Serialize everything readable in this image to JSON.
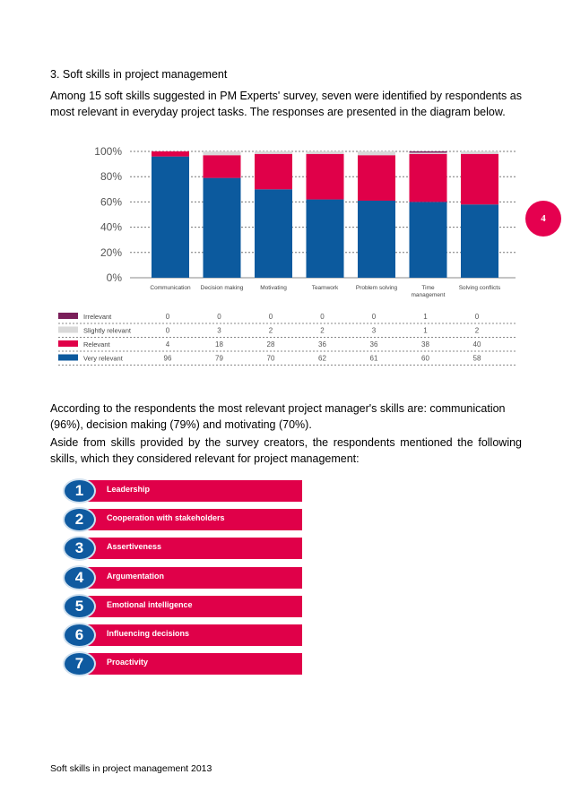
{
  "heading": "3. Soft skills in project management",
  "intro": "Among 15 soft skills suggested in PM Experts' survey, seven were identified by respondents as most relevant in everyday project tasks. The responses are presented in the diagram below.",
  "page_number": "4",
  "paragraph2": "According to the respondents the most relevant project manager's skills are: communication (96%), decision making  (79%) and motivating (70%).",
  "paragraph3": "Aside from skills provided by the survey creators, the respondents mentioned the following skills, which they considered relevant for project management:",
  "skills": [
    {
      "num": "1",
      "label": "Leadership"
    },
    {
      "num": "2",
      "label": "Cooperation with stakeholders"
    },
    {
      "num": "3",
      "label": "Assertiveness"
    },
    {
      "num": "4",
      "label": "Argumentation"
    },
    {
      "num": "5",
      "label": "Emotional intelligence"
    },
    {
      "num": "6",
      "label": "Influencing decisions"
    },
    {
      "num": "7",
      "label": "Proactivity"
    }
  ],
  "footer": "Soft skills in project management 2013",
  "colors": {
    "very_relevant": "#0c5a9e",
    "relevant": "#e00049",
    "slightly_relevant": "#d9d9d9",
    "irrelevant": "#7a1f5a",
    "badge": "#e5004f"
  },
  "chart_data": {
    "type": "bar",
    "stacked": true,
    "categories": [
      "Communication",
      "Decision making",
      "Motivating",
      "Teamwork",
      "Problem solving",
      "Time\nmanagement",
      "Solving conflicts"
    ],
    "series": [
      {
        "name": "Very relevant",
        "values": [
          96,
          79,
          70,
          62,
          61,
          60,
          58
        ]
      },
      {
        "name": "Relevant",
        "values": [
          4,
          18,
          28,
          36,
          36,
          38,
          40
        ]
      },
      {
        "name": "Slightly relevant",
        "values": [
          0,
          3,
          2,
          2,
          3,
          1,
          2
        ]
      },
      {
        "name": "Irrelevant",
        "values": [
          0,
          0,
          0,
          0,
          0,
          1,
          0
        ]
      }
    ],
    "table_order": [
      "Irrelevant",
      "Slightly relevant",
      "Relevant",
      "Very relevant"
    ],
    "ytick_labels": [
      "100%",
      "80%",
      "60%",
      "40%",
      "20%",
      "0%"
    ],
    "ylim": [
      0,
      100
    ],
    "grid": true,
    "legend": "table-below"
  }
}
